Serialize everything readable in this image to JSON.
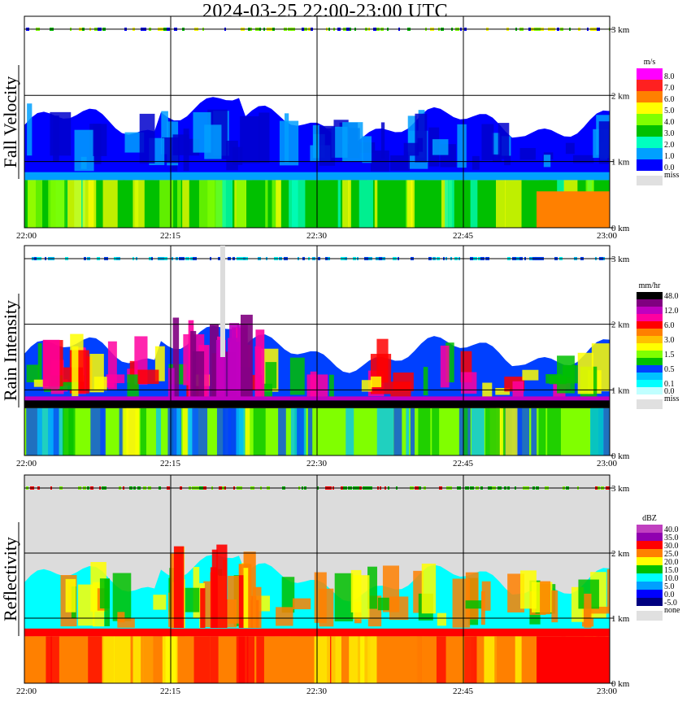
{
  "title": "2024-03-25   22:00-23:00 UTC",
  "time_ticks": [
    "22:00",
    "22:15",
    "22:30",
    "22:45",
    "23:00"
  ],
  "height_ticks": [
    "3 km",
    "2 km",
    "1 km",
    "0 km"
  ],
  "chart_data": [
    {
      "type": "heatmap",
      "title": "Fall Velocity",
      "x_range": [
        "22:00",
        "23:00"
      ],
      "y_range_km": [
        0,
        3.2
      ],
      "y_ticks": [
        "3 km",
        "2 km",
        "1 km",
        "0 km"
      ],
      "x_ticks": [
        "22:00",
        "22:15",
        "22:30",
        "22:45",
        "23:00"
      ],
      "grid": true,
      "legend": {
        "unit": "m/s",
        "placement": "right",
        "levels": [
          {
            "label": "8.0",
            "color": "#ff00ff"
          },
          {
            "label": "7.0",
            "color": "#ff2020"
          },
          {
            "label": "6.0",
            "color": "#ff8000"
          },
          {
            "label": "5.0",
            "color": "#ffff00"
          },
          {
            "label": "4.0",
            "color": "#80ff00"
          },
          {
            "label": "3.0",
            "color": "#00c000"
          },
          {
            "label": "2.0",
            "color": "#00ffc0"
          },
          {
            "label": "1.0",
            "color": "#00a0ff"
          },
          {
            "label": "0.0",
            "color": "#0000ff"
          }
        ],
        "missing": {
          "label": "miss",
          "color": "#e0e0e0"
        }
      }
    },
    {
      "type": "heatmap",
      "title": "Rain Intensity",
      "x_range": [
        "22:00",
        "23:00"
      ],
      "y_range_km": [
        0,
        3.2
      ],
      "y_ticks": [
        "3 km",
        "2 km",
        "1 km",
        "0 km"
      ],
      "x_ticks": [
        "22:00",
        "22:15",
        "22:30",
        "22:45",
        "23:00"
      ],
      "grid": true,
      "legend": {
        "unit": "mm/hr",
        "placement": "right",
        "levels": [
          {
            "label": "48.0",
            "color": "#000000"
          },
          {
            "label": "",
            "color": "#800080"
          },
          {
            "label": "12.0",
            "color": "#c000c0"
          },
          {
            "label": "",
            "color": "#ff00a0"
          },
          {
            "label": "6.0",
            "color": "#ff0000"
          },
          {
            "label": "",
            "color": "#ff8000"
          },
          {
            "label": "3.0",
            "color": "#ffc000"
          },
          {
            "label": "",
            "color": "#ffff00"
          },
          {
            "label": "1.5",
            "color": "#80ff00"
          },
          {
            "label": "",
            "color": "#00c000"
          },
          {
            "label": "0.5",
            "color": "#0040ff"
          },
          {
            "label": "",
            "color": "#00c0ff"
          },
          {
            "label": "0.1",
            "color": "#00ffff"
          },
          {
            "label": "0.0",
            "color": "#c0ffff"
          }
        ],
        "missing": {
          "label": "miss",
          "color": "#e0e0e0"
        }
      }
    },
    {
      "type": "heatmap",
      "title": "Reflectivity",
      "x_range": [
        "22:00",
        "23:00"
      ],
      "y_range_km": [
        0,
        3.2
      ],
      "y_ticks": [
        "3 km",
        "2 km",
        "1 km",
        "0 km"
      ],
      "x_ticks": [
        "22:00",
        "22:15",
        "22:30",
        "22:45",
        "23:00"
      ],
      "grid": true,
      "legend": {
        "unit": "dBZ",
        "placement": "right",
        "levels": [
          {
            "label": "40.0",
            "color": "#c040c0"
          },
          {
            "label": "35.0",
            "color": "#9000b0"
          },
          {
            "label": "30.0",
            "color": "#ff0000"
          },
          {
            "label": "25.0",
            "color": "#ff8000"
          },
          {
            "label": "20.0",
            "color": "#ffff00"
          },
          {
            "label": "15.0",
            "color": "#00c000"
          },
          {
            "label": "10.0",
            "color": "#00ffff"
          },
          {
            "label": "5.0",
            "color": "#00a0ff"
          },
          {
            "label": "0.0",
            "color": "#0000ff"
          },
          {
            "label": "-5.0",
            "color": "#000080"
          }
        ],
        "missing": {
          "label": "none",
          "color": "#e0e0e0"
        }
      }
    }
  ]
}
